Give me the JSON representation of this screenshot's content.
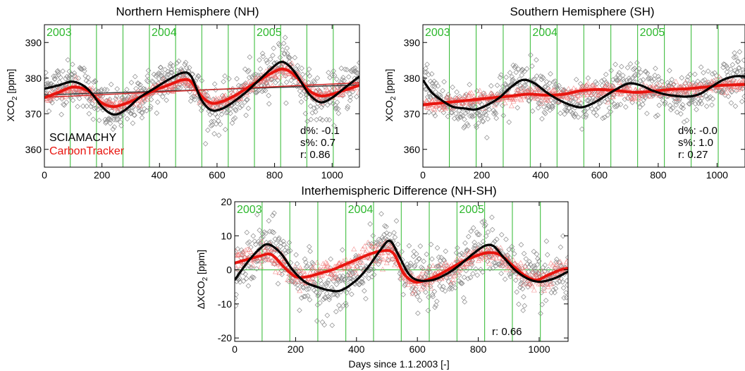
{
  "figure": {
    "x_axis_label": "Days since 1.1.2003 [-]",
    "colors": {
      "sciamachy": "#000000",
      "carbontracker": "#e8150f",
      "scatter_sciamachy": "#8a8a8a",
      "scatter_carbontracker": "#ef6b6b",
      "year_lines": "#2eb82e",
      "zero_line": "#2eb82e",
      "trend_sciamachy": "#3a3a3a",
      "trend_carbontracker": "#d42a2a"
    },
    "years": [
      {
        "label": "2003",
        "day": 0
      },
      {
        "label": "2004",
        "day": 365
      },
      {
        "label": "2005",
        "day": 730
      }
    ],
    "season_lines_days": [
      0,
      90,
      181,
      273,
      365,
      456,
      547,
      639,
      730,
      821,
      912,
      1004,
      1095
    ]
  },
  "chart_data": [
    {
      "type": "scatter",
      "title": "Northern Hemisphere (NH)",
      "ylabel": "XCO2 [ppm]",
      "ylabel_main": "XCO",
      "ylabel_sub": "2",
      "ylabel_unit": " [ppm]",
      "xlim": [
        0,
        1095
      ],
      "ylim": [
        355,
        395
      ],
      "xticks": [
        0,
        200,
        400,
        600,
        800,
        1000
      ],
      "yticks": [
        360,
        370,
        380,
        390
      ],
      "legend": [
        "SCIAMACHY",
        "CarbonTracker"
      ],
      "legend_placement": "bottom-left",
      "stats": {
        "d": "d%: -0.1",
        "s": "s%:  0.7",
        "r": "r:  0.86"
      },
      "series": [
        {
          "name": "SCIAMACHY",
          "x": [
            0,
            50,
            100,
            150,
            200,
            240,
            280,
            330,
            380,
            430,
            480,
            510,
            545,
            580,
            620,
            660,
            700,
            740,
            780,
            820,
            850,
            880,
            920,
            960,
            1000,
            1040,
            1095
          ],
          "y": [
            377,
            378,
            379,
            377,
            372,
            369.8,
            371,
            374.5,
            377,
            379.5,
            381.5,
            380.5,
            374,
            371,
            371.5,
            373.5,
            376,
            379,
            382,
            384.5,
            383.5,
            380.5,
            375.5,
            373.2,
            374.5,
            377,
            380.5
          ]
        },
        {
          "name": "CarbonTracker",
          "x": [
            0,
            50,
            100,
            150,
            200,
            240,
            280,
            330,
            380,
            430,
            480,
            510,
            545,
            580,
            620,
            660,
            700,
            740,
            780,
            820,
            850,
            880,
            920,
            960,
            1000,
            1040,
            1095
          ],
          "y": [
            374.5,
            376,
            377.5,
            376.5,
            373,
            372,
            372.8,
            374.5,
            376.5,
            378,
            379.5,
            379,
            375,
            373,
            373.5,
            375,
            377,
            379,
            381,
            382.5,
            382,
            380,
            376.5,
            375,
            375.5,
            376.5,
            378
          ]
        }
      ],
      "trend_sciamachy": {
        "x": [
          0,
          1095
        ],
        "y": [
          375.3,
          378.1
        ]
      },
      "trend_carbontracker": {
        "x": [
          0,
          1095
        ],
        "y": [
          374.6,
          378.7
        ]
      }
    },
    {
      "type": "scatter",
      "title": "Southern Hemisphere (SH)",
      "ylabel": "XCO2 [ppm]",
      "ylabel_main": "XCO",
      "ylabel_sub": "2",
      "ylabel_unit": " [ppm]",
      "xlim": [
        0,
        1095
      ],
      "ylim": [
        355,
        395
      ],
      "xticks": [
        0,
        200,
        400,
        600,
        800,
        1000
      ],
      "yticks": [
        360,
        370,
        380,
        390
      ],
      "stats": {
        "d": "d%: -0.0",
        "s": "s%:  1.0",
        "r": "r:  0.27"
      },
      "series": [
        {
          "name": "SCIAMACHY",
          "x": [
            0,
            30,
            60,
            100,
            140,
            180,
            220,
            260,
            300,
            340,
            380,
            420,
            460,
            500,
            540,
            580,
            620,
            660,
            700,
            740,
            780,
            820,
            860,
            900,
            940,
            980,
            1020,
            1060,
            1095
          ],
          "y": [
            379.5,
            376,
            374,
            372,
            371.5,
            371.2,
            372.5,
            374.5,
            377.5,
            379.5,
            378.5,
            376,
            374,
            372.5,
            371.8,
            373,
            375,
            377,
            378.5,
            378,
            376.5,
            375.5,
            375,
            374.8,
            375.5,
            377.5,
            379.5,
            380.5,
            380.5
          ]
        },
        {
          "name": "CarbonTracker",
          "x": [
            0,
            60,
            120,
            180,
            240,
            300,
            360,
            420,
            480,
            540,
            600,
            660,
            720,
            780,
            840,
            900,
            960,
            1020,
            1095
          ],
          "y": [
            372.5,
            373,
            373.5,
            374,
            374.5,
            375,
            375.5,
            375.2,
            375.5,
            376.5,
            376.8,
            376.5,
            376,
            376.3,
            376.8,
            377,
            377.5,
            378,
            378.2
          ]
        }
      ]
    },
    {
      "type": "scatter",
      "title": "Interhemispheric Difference (NH-SH)",
      "ylabel": "ΔXCO2 [ppm]",
      "ylabel_main": "ΔXCO",
      "ylabel_sub": "2",
      "ylabel_unit": " [ppm]",
      "xlabel": "Days since 1.1.2003 [-]",
      "xlim": [
        0,
        1095
      ],
      "ylim": [
        -21,
        20
      ],
      "xticks": [
        0,
        200,
        400,
        600,
        800,
        1000
      ],
      "yticks": [
        -20,
        -10,
        0,
        10,
        20
      ],
      "stats": {
        "r": "r:  0.66"
      },
      "series": [
        {
          "name": "SCIAMACHY",
          "x": [
            0,
            40,
            80,
            110,
            150,
            190,
            230,
            270,
            310,
            350,
            400,
            440,
            480,
            510,
            540,
            570,
            600,
            650,
            700,
            740,
            780,
            820,
            850,
            880,
            920,
            960,
            1000,
            1050,
            1095
          ],
          "y": [
            -3,
            2,
            6,
            7.5,
            5,
            0,
            -3.5,
            -5,
            -6,
            -6,
            -3,
            1,
            6,
            8.5,
            4,
            -1,
            -3,
            -3,
            -1,
            1.5,
            4.5,
            7,
            7,
            4,
            0,
            -2.5,
            -3.5,
            -2.5,
            -0.5
          ]
        },
        {
          "name": "CarbonTracker",
          "x": [
            0,
            40,
            80,
            120,
            160,
            200,
            240,
            280,
            320,
            360,
            400,
            440,
            480,
            520,
            555,
            590,
            630,
            670,
            710,
            750,
            790,
            830,
            870,
            910,
            950,
            990,
            1030,
            1070,
            1095
          ],
          "y": [
            2,
            3,
            4,
            4.5,
            1,
            -2,
            -2,
            -1,
            0,
            1.5,
            3,
            4.5,
            5.5,
            5,
            -1,
            -3.5,
            -3,
            -1.5,
            0.5,
            2.5,
            4,
            5,
            4.5,
            1.5,
            -1.5,
            -3,
            -1.5,
            0,
            0.5
          ]
        }
      ]
    }
  ]
}
